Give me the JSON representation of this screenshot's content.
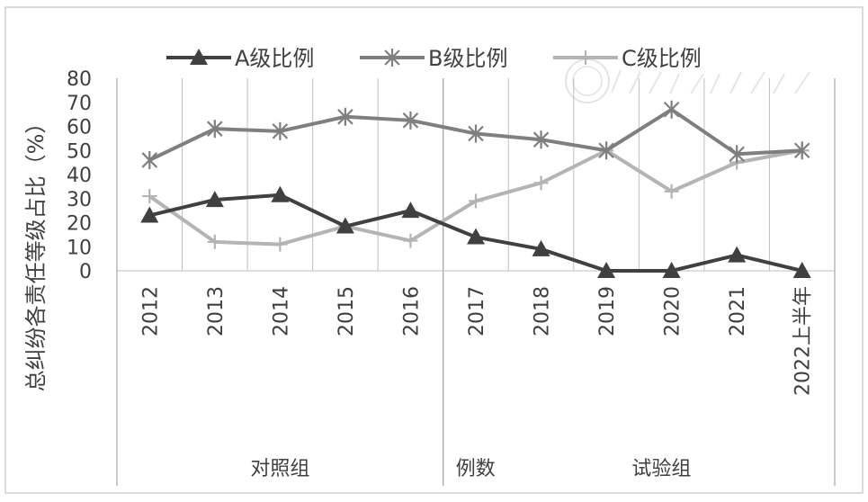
{
  "chart_data": {
    "type": "line",
    "ylabel": "总纠纷各责任等级占比（%）",
    "ylim": [
      0,
      80
    ],
    "yticks": [
      0,
      10,
      20,
      30,
      40,
      50,
      60,
      70,
      80
    ],
    "categories": [
      "2012",
      "2013",
      "2014",
      "2015",
      "2016",
      "2017",
      "2018",
      "2019",
      "2020",
      "2021",
      "2022上半年"
    ],
    "series": [
      {
        "name": "A级比例",
        "marker": "triangle",
        "color": "#404040",
        "values": [
          23,
          29.5,
          31.5,
          18.5,
          25,
          14,
          9,
          0,
          0,
          6.5,
          0
        ]
      },
      {
        "name": "B级比例",
        "marker": "asterisk",
        "color": "#7f7f7f",
        "values": [
          46,
          59,
          58,
          64,
          62.5,
          57,
          54.5,
          50,
          67,
          48.5,
          50
        ]
      },
      {
        "name": "C级比例",
        "marker": "plus",
        "color": "#b4b4b4",
        "values": [
          31,
          12,
          11,
          18.5,
          12.5,
          29,
          36.5,
          50,
          33,
          45,
          50
        ]
      }
    ],
    "group_labels": [
      "对照组",
      "例数",
      "试验组"
    ],
    "legend_position": "top",
    "grid": "vertical"
  }
}
